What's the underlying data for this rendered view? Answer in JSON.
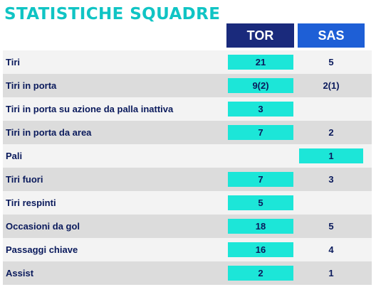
{
  "title": "STATISTICHE SQUADRE",
  "colors": {
    "title": "#10c4c4",
    "tor_header": "#1a2a7c",
    "sas_header": "#1e5fd6",
    "highlight": "#1ce6d8",
    "text": "#0a1a5c"
  },
  "headers": {
    "tor": "TOR",
    "sas": "SAS"
  },
  "rows": [
    {
      "label": "Tiri",
      "tor": "21",
      "sas": "5",
      "highlight": "tor"
    },
    {
      "label": "Tiri in porta",
      "tor": "9(2)",
      "sas": "2(1)",
      "highlight": "tor"
    },
    {
      "label": "Tiri in porta su azione da palla inattiva",
      "tor": "3",
      "sas": "",
      "highlight": "tor"
    },
    {
      "label": "Tiri in porta da area",
      "tor": "7",
      "sas": "2",
      "highlight": "tor"
    },
    {
      "label": "Pali",
      "tor": "",
      "sas": "1",
      "highlight": "sas"
    },
    {
      "label": "Tiri fuori",
      "tor": "7",
      "sas": "3",
      "highlight": "tor"
    },
    {
      "label": "Tiri respinti",
      "tor": "5",
      "sas": "",
      "highlight": "tor"
    },
    {
      "label": "Occasioni da gol",
      "tor": "18",
      "sas": "5",
      "highlight": "tor"
    },
    {
      "label": "Passaggi chiave",
      "tor": "16",
      "sas": "4",
      "highlight": "tor"
    },
    {
      "label": "Assist",
      "tor": "2",
      "sas": "1",
      "highlight": "tor"
    }
  ]
}
